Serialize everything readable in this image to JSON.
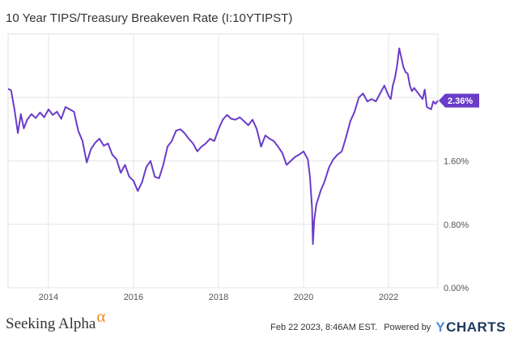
{
  "chart_data": {
    "type": "line",
    "title": "10 Year TIPS/Treasury Breakeven Rate (I:10YTIPST)",
    "xlabel": "",
    "ylabel": "",
    "ylim": [
      0.0,
      3.2
    ],
    "xlim": [
      2013.05,
      2023.16
    ],
    "y_ticks": [
      "0.00%",
      "0.80%",
      "1.60%",
      "2.40%"
    ],
    "y_tick_values": [
      0.0,
      0.8,
      1.6,
      2.4
    ],
    "x_ticks": [
      "2014",
      "2016",
      "2018",
      "2020",
      "2022"
    ],
    "x_tick_values": [
      2014,
      2016,
      2018,
      2020,
      2022
    ],
    "grid": true,
    "series": [
      {
        "color": "#6a3cc8",
        "last_value_label": "2.36%",
        "x": [
          2013.05,
          2013.12,
          2013.2,
          2013.28,
          2013.35,
          2013.42,
          2013.5,
          2013.6,
          2013.7,
          2013.8,
          2013.9,
          2014.0,
          2014.1,
          2014.2,
          2014.3,
          2014.4,
          2014.5,
          2014.6,
          2014.7,
          2014.8,
          2014.9,
          2015.0,
          2015.1,
          2015.2,
          2015.3,
          2015.4,
          2015.5,
          2015.6,
          2015.7,
          2015.8,
          2015.9,
          2016.0,
          2016.1,
          2016.2,
          2016.3,
          2016.4,
          2016.5,
          2016.6,
          2016.7,
          2016.8,
          2016.9,
          2017.0,
          2017.1,
          2017.2,
          2017.3,
          2017.4,
          2017.5,
          2017.6,
          2017.7,
          2017.8,
          2017.9,
          2018.0,
          2018.1,
          2018.2,
          2018.3,
          2018.4,
          2018.5,
          2018.6,
          2018.7,
          2018.8,
          2018.9,
          2019.0,
          2019.1,
          2019.2,
          2019.3,
          2019.4,
          2019.5,
          2019.6,
          2019.7,
          2019.8,
          2019.9,
          2020.0,
          2020.1,
          2020.15,
          2020.2,
          2020.22,
          2020.25,
          2020.3,
          2020.4,
          2020.5,
          2020.6,
          2020.7,
          2020.8,
          2020.9,
          2021.0,
          2021.1,
          2021.2,
          2021.3,
          2021.4,
          2021.5,
          2021.6,
          2021.7,
          2021.8,
          2021.9,
          2022.0,
          2022.05,
          2022.1,
          2022.15,
          2022.2,
          2022.25,
          2022.3,
          2022.35,
          2022.4,
          2022.45,
          2022.5,
          2022.55,
          2022.6,
          2022.7,
          2022.8,
          2022.85,
          2022.9,
          2023.0,
          2023.05,
          2023.1,
          2023.16
        ],
        "y": [
          2.51,
          2.49,
          2.25,
          1.95,
          2.19,
          2.01,
          2.12,
          2.19,
          2.14,
          2.21,
          2.15,
          2.25,
          2.18,
          2.22,
          2.13,
          2.28,
          2.25,
          2.22,
          1.98,
          1.85,
          1.58,
          1.75,
          1.83,
          1.88,
          1.79,
          1.82,
          1.68,
          1.62,
          1.45,
          1.55,
          1.4,
          1.35,
          1.22,
          1.33,
          1.52,
          1.6,
          1.4,
          1.38,
          1.55,
          1.78,
          1.85,
          1.98,
          2.0,
          1.95,
          1.88,
          1.82,
          1.72,
          1.78,
          1.82,
          1.88,
          1.85,
          2.0,
          2.12,
          2.18,
          2.13,
          2.12,
          2.15,
          2.1,
          2.05,
          2.12,
          2.0,
          1.78,
          1.92,
          1.88,
          1.85,
          1.78,
          1.7,
          1.55,
          1.6,
          1.65,
          1.68,
          1.72,
          1.62,
          1.4,
          1.0,
          0.55,
          0.85,
          1.05,
          1.22,
          1.35,
          1.52,
          1.62,
          1.68,
          1.72,
          1.9,
          2.1,
          2.22,
          2.4,
          2.45,
          2.35,
          2.38,
          2.35,
          2.45,
          2.55,
          2.42,
          2.38,
          2.55,
          2.65,
          2.8,
          3.02,
          2.9,
          2.78,
          2.72,
          2.7,
          2.55,
          2.48,
          2.52,
          2.45,
          2.38,
          2.5,
          2.28,
          2.25,
          2.35,
          2.32,
          2.36
        ]
      }
    ]
  },
  "footer": {
    "brand": "Seeking Alpha",
    "brand_symbol": "α",
    "timestamp": "Feb 22 2023, 8:46AM EST.",
    "powered_by": "Powered by",
    "ycharts_y": "Y",
    "ycharts_rest": "CHARTS"
  }
}
